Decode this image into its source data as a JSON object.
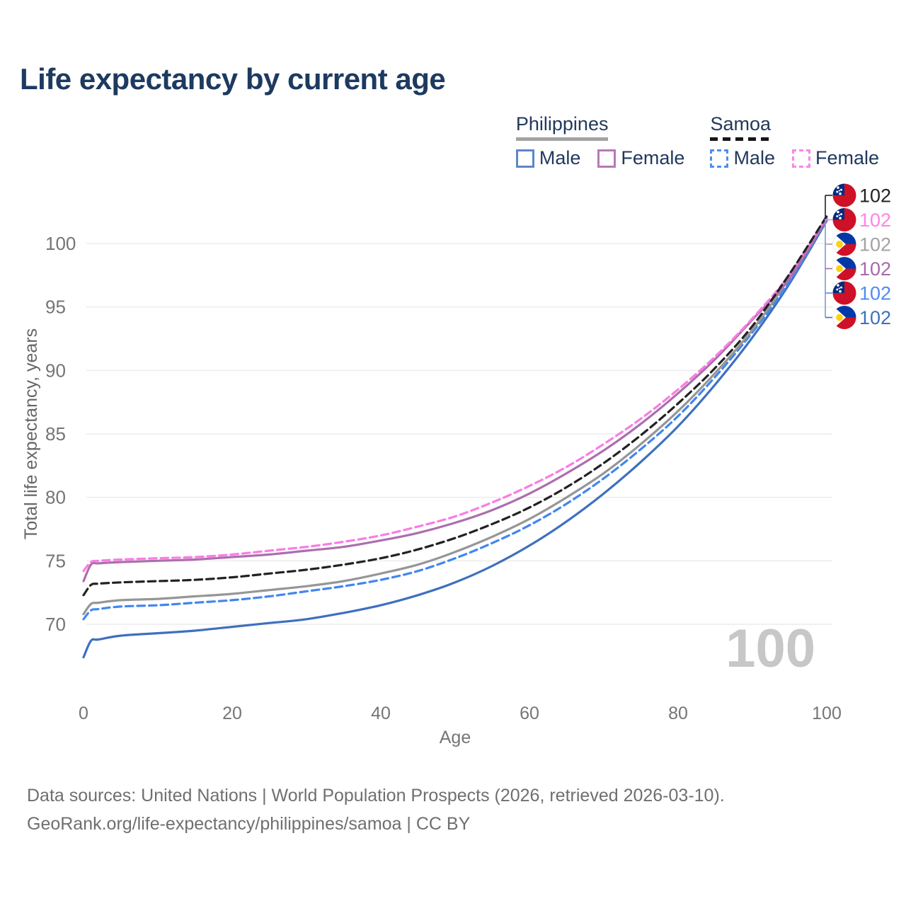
{
  "title": "Life expectancy by current age",
  "legend": {
    "groups": [
      {
        "name": "Philippines",
        "line_style": "solid",
        "underline_color": "#a3a3a3",
        "items": [
          {
            "label": "Male",
            "color": "#5e86c8",
            "dashed": false
          },
          {
            "label": "Female",
            "color": "#b778b8",
            "dashed": false
          }
        ]
      },
      {
        "name": "Samoa",
        "line_style": "dashed",
        "underline_color": "#161616",
        "items": [
          {
            "label": "Male",
            "color": "#4f8df2",
            "dashed": true
          },
          {
            "label": "Female",
            "color": "#fb85e8",
            "dashed": true
          }
        ]
      }
    ]
  },
  "chart_data": {
    "type": "line",
    "title": "Life expectancy by current age",
    "xlabel": "Age",
    "ylabel": "Total life expectancy, years",
    "xticks": [
      0,
      20,
      40,
      60,
      80,
      100
    ],
    "yticks": [
      70,
      75,
      80,
      85,
      90,
      95,
      100
    ],
    "xlim": [
      0,
      100
    ],
    "ylim": [
      67,
      103
    ],
    "grid": "horizontal",
    "legend_position": "top-right",
    "watermark": "100",
    "x": [
      0,
      1,
      2,
      5,
      10,
      15,
      20,
      25,
      30,
      35,
      40,
      45,
      50,
      55,
      60,
      65,
      70,
      75,
      80,
      85,
      90,
      95,
      100
    ],
    "series": [
      {
        "id": "philippines-male",
        "name": "Philippines Male",
        "country": "Philippines",
        "sex": "Male",
        "color": "#3e70be",
        "dashed": false,
        "values": [
          67.4,
          68.7,
          68.8,
          69.1,
          69.3,
          69.5,
          69.8,
          70.1,
          70.4,
          70.9,
          71.5,
          72.3,
          73.3,
          74.6,
          76.2,
          78.1,
          80.3,
          82.8,
          85.6,
          88.9,
          92.6,
          96.85,
          101.8
        ]
      },
      {
        "id": "samoa-male",
        "name": "Samoa Male",
        "country": "Samoa",
        "sex": "Male",
        "color": "#4186f0",
        "dashed": true,
        "values": [
          70.4,
          71.1,
          71.2,
          71.4,
          71.5,
          71.7,
          71.9,
          72.2,
          72.6,
          73.0,
          73.5,
          74.2,
          75.2,
          76.4,
          77.8,
          79.5,
          81.5,
          83.8,
          86.4,
          89.5,
          93.0,
          97.0,
          101.9
        ]
      },
      {
        "id": "philippines-all",
        "name": "Philippines (all)",
        "country": "Philippines",
        "sex": "All",
        "color": "#969696",
        "dashed": false,
        "values": [
          70.8,
          71.6,
          71.7,
          71.9,
          72.0,
          72.2,
          72.4,
          72.7,
          73.0,
          73.4,
          74.0,
          74.7,
          75.7,
          76.9,
          78.3,
          80.0,
          81.9,
          84.2,
          86.8,
          89.8,
          93.2,
          97.3,
          102.0
        ]
      },
      {
        "id": "philippines-female",
        "name": "Philippines Female",
        "country": "Philippines",
        "sex": "Female",
        "color": "#ab6fad",
        "dashed": false,
        "values": [
          73.4,
          74.7,
          74.8,
          74.9,
          75.0,
          75.1,
          75.3,
          75.5,
          75.8,
          76.1,
          76.6,
          77.2,
          78.0,
          79.0,
          80.3,
          81.9,
          83.7,
          85.8,
          88.2,
          90.9,
          94.0,
          97.25,
          101.95
        ]
      },
      {
        "id": "samoa-female",
        "name": "Samoa Female",
        "country": "Samoa",
        "sex": "Female",
        "color": "#fb7ce4",
        "dashed": true,
        "values": [
          74.2,
          74.9,
          75.0,
          75.1,
          75.2,
          75.3,
          75.5,
          75.8,
          76.1,
          76.5,
          77.0,
          77.7,
          78.5,
          79.6,
          80.9,
          82.4,
          84.2,
          86.2,
          88.5,
          91.1,
          94.1,
          97.55,
          102.1
        ]
      },
      {
        "id": "samoa-all",
        "name": "Samoa (all)",
        "country": "Samoa",
        "sex": "All",
        "color": "#222222",
        "dashed": true,
        "values": [
          72.3,
          73.1,
          73.2,
          73.3,
          73.4,
          73.5,
          73.7,
          74.0,
          74.3,
          74.7,
          75.2,
          75.9,
          76.8,
          77.9,
          79.2,
          80.8,
          82.7,
          84.9,
          87.4,
          90.2,
          93.5,
          97.6,
          102.15
        ]
      }
    ],
    "end_labels": [
      {
        "series": "samoa-all",
        "flag": "samoa",
        "value": "102",
        "color": "#222222"
      },
      {
        "series": "samoa-female",
        "flag": "samoa",
        "value": "102",
        "color": "#ff85e2"
      },
      {
        "series": "philippines-all",
        "flag": "philippines",
        "value": "102",
        "color": "#a3a3a3"
      },
      {
        "series": "philippines-female",
        "flag": "philippines",
        "value": "102",
        "color": "#a869a8"
      },
      {
        "series": "samoa-male",
        "flag": "samoa",
        "value": "102",
        "color": "#4f8cf0"
      },
      {
        "series": "philippines-male",
        "flag": "philippines",
        "value": "102",
        "color": "#3e70be"
      }
    ],
    "flag_colors": {
      "samoa_red": "#ce1126",
      "samoa_blue": "#002b7f",
      "philippines_blue": "#0038a8",
      "philippines_red": "#ce1126",
      "philippines_yellow": "#fcd116"
    }
  },
  "footer": {
    "line1": "Data sources: United Nations | World Population Prospects (2026, retrieved 2026-03-10).",
    "line2": "GeoRank.org/life-expectancy/philippines/samoa | CC BY"
  }
}
